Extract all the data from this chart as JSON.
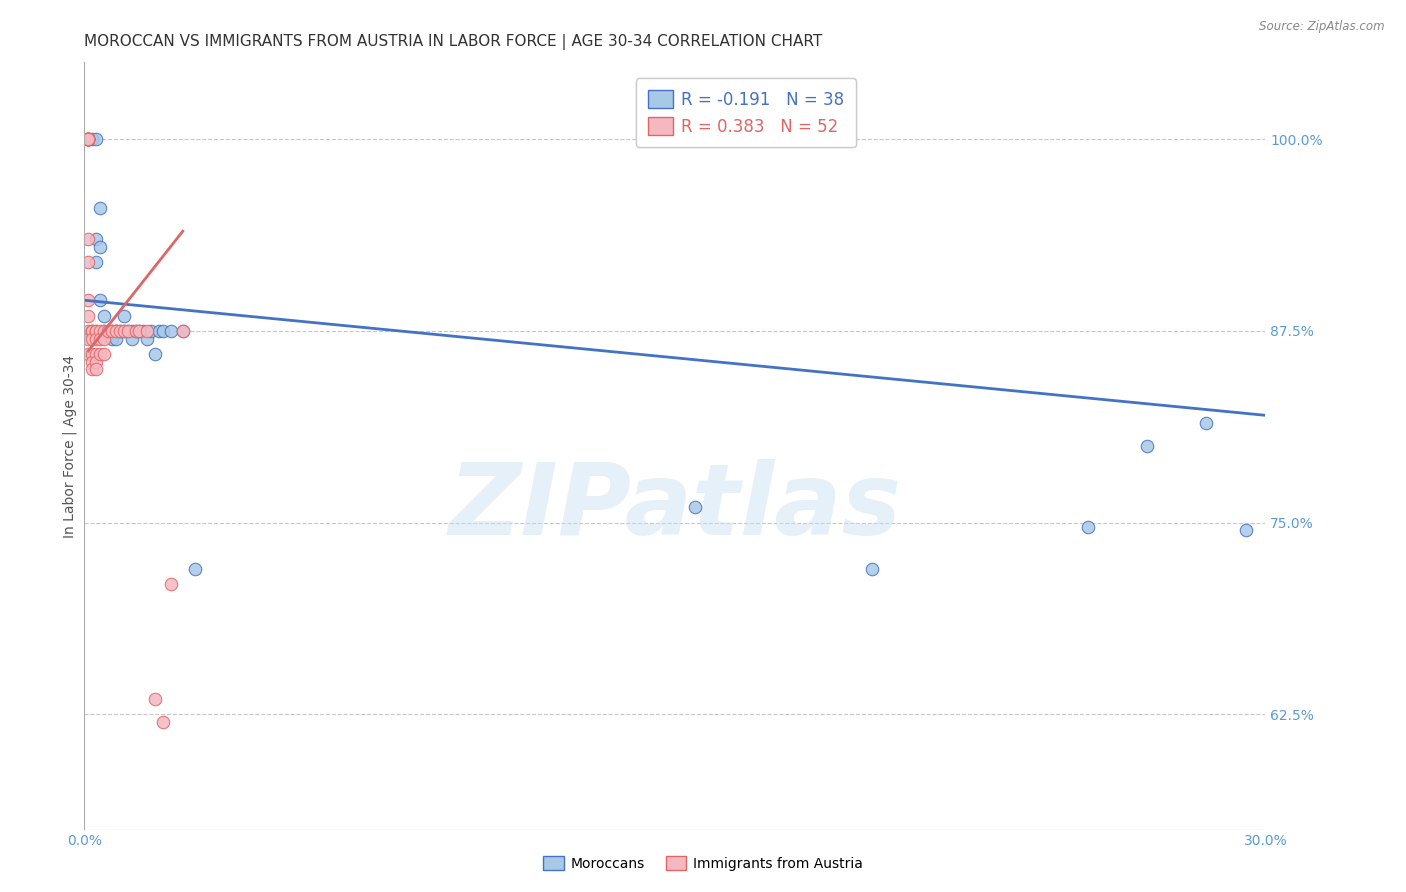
{
  "title": "MOROCCAN VS IMMIGRANTS FROM AUSTRIA IN LABOR FORCE | AGE 30-34 CORRELATION CHART",
  "source": "Source: ZipAtlas.com",
  "ylabel": "In Labor Force | Age 30-34",
  "xlim": [
    0.0,
    0.3
  ],
  "ylim": [
    0.55,
    1.05
  ],
  "yticks": [
    0.625,
    0.75,
    0.875,
    1.0
  ],
  "ytick_labels": [
    "62.5%",
    "75.0%",
    "87.5%",
    "100.0%"
  ],
  "xticks": [
    0.0,
    0.3
  ],
  "xtick_labels": [
    "0.0%",
    "30.0%"
  ],
  "blue_color": "#a8c8e8",
  "pink_color": "#f4b8c0",
  "blue_edge_color": "#4472c4",
  "pink_edge_color": "#e06666",
  "legend_blue_R": "-0.191",
  "legend_blue_N": "38",
  "legend_pink_R": "0.383",
  "legend_pink_N": "52",
  "legend_label_blue": "Moroccans",
  "legend_label_pink": "Immigrants from Austria",
  "watermark_text": "ZIPatlas",
  "blue_scatter_x": [
    0.002,
    0.003,
    0.003,
    0.003,
    0.004,
    0.004,
    0.004,
    0.005,
    0.005,
    0.006,
    0.007,
    0.007,
    0.008,
    0.008,
    0.008,
    0.009,
    0.01,
    0.01,
    0.011,
    0.012,
    0.012,
    0.013,
    0.014,
    0.015,
    0.016,
    0.017,
    0.018,
    0.019,
    0.02,
    0.022,
    0.025,
    0.028,
    0.155,
    0.2,
    0.255,
    0.27,
    0.285,
    0.295
  ],
  "blue_scatter_y": [
    1.0,
    1.0,
    0.935,
    0.92,
    0.955,
    0.93,
    0.895,
    0.885,
    0.875,
    0.875,
    0.875,
    0.87,
    0.875,
    0.875,
    0.87,
    0.875,
    0.885,
    0.875,
    0.875,
    0.875,
    0.87,
    0.875,
    0.875,
    0.875,
    0.87,
    0.875,
    0.86,
    0.875,
    0.875,
    0.875,
    0.875,
    0.72,
    0.76,
    0.72,
    0.747,
    0.8,
    0.815,
    0.745
  ],
  "pink_scatter_x": [
    0.001,
    0.001,
    0.001,
    0.001,
    0.001,
    0.001,
    0.001,
    0.001,
    0.001,
    0.001,
    0.001,
    0.001,
    0.001,
    0.001,
    0.001,
    0.001,
    0.001,
    0.001,
    0.001,
    0.001,
    0.002,
    0.002,
    0.002,
    0.002,
    0.002,
    0.002,
    0.002,
    0.003,
    0.003,
    0.003,
    0.003,
    0.003,
    0.003,
    0.004,
    0.004,
    0.004,
    0.005,
    0.005,
    0.005,
    0.006,
    0.007,
    0.008,
    0.009,
    0.01,
    0.011,
    0.013,
    0.014,
    0.016,
    0.018,
    0.02,
    0.022,
    0.025
  ],
  "pink_scatter_y": [
    1.0,
    1.0,
    1.0,
    1.0,
    1.0,
    1.0,
    1.0,
    1.0,
    1.0,
    1.0,
    1.0,
    1.0,
    1.0,
    0.935,
    0.92,
    0.895,
    0.885,
    0.875,
    0.87,
    0.86,
    0.875,
    0.875,
    0.875,
    0.87,
    0.86,
    0.855,
    0.85,
    0.875,
    0.875,
    0.87,
    0.86,
    0.855,
    0.85,
    0.875,
    0.87,
    0.86,
    0.875,
    0.87,
    0.86,
    0.875,
    0.875,
    0.875,
    0.875,
    0.875,
    0.875,
    0.875,
    0.875,
    0.875,
    0.635,
    0.62,
    0.71,
    0.875
  ],
  "blue_trend_x": [
    0.0,
    0.3
  ],
  "blue_trend_y": [
    0.895,
    0.82
  ],
  "pink_trend_x": [
    0.001,
    0.025
  ],
  "pink_trend_y": [
    0.862,
    0.94
  ],
  "background_color": "#ffffff",
  "grid_color": "#c8c8c8",
  "title_fontsize": 11,
  "tick_color": "#5b9bd5",
  "ylabel_fontsize": 10,
  "marker_size": 9
}
